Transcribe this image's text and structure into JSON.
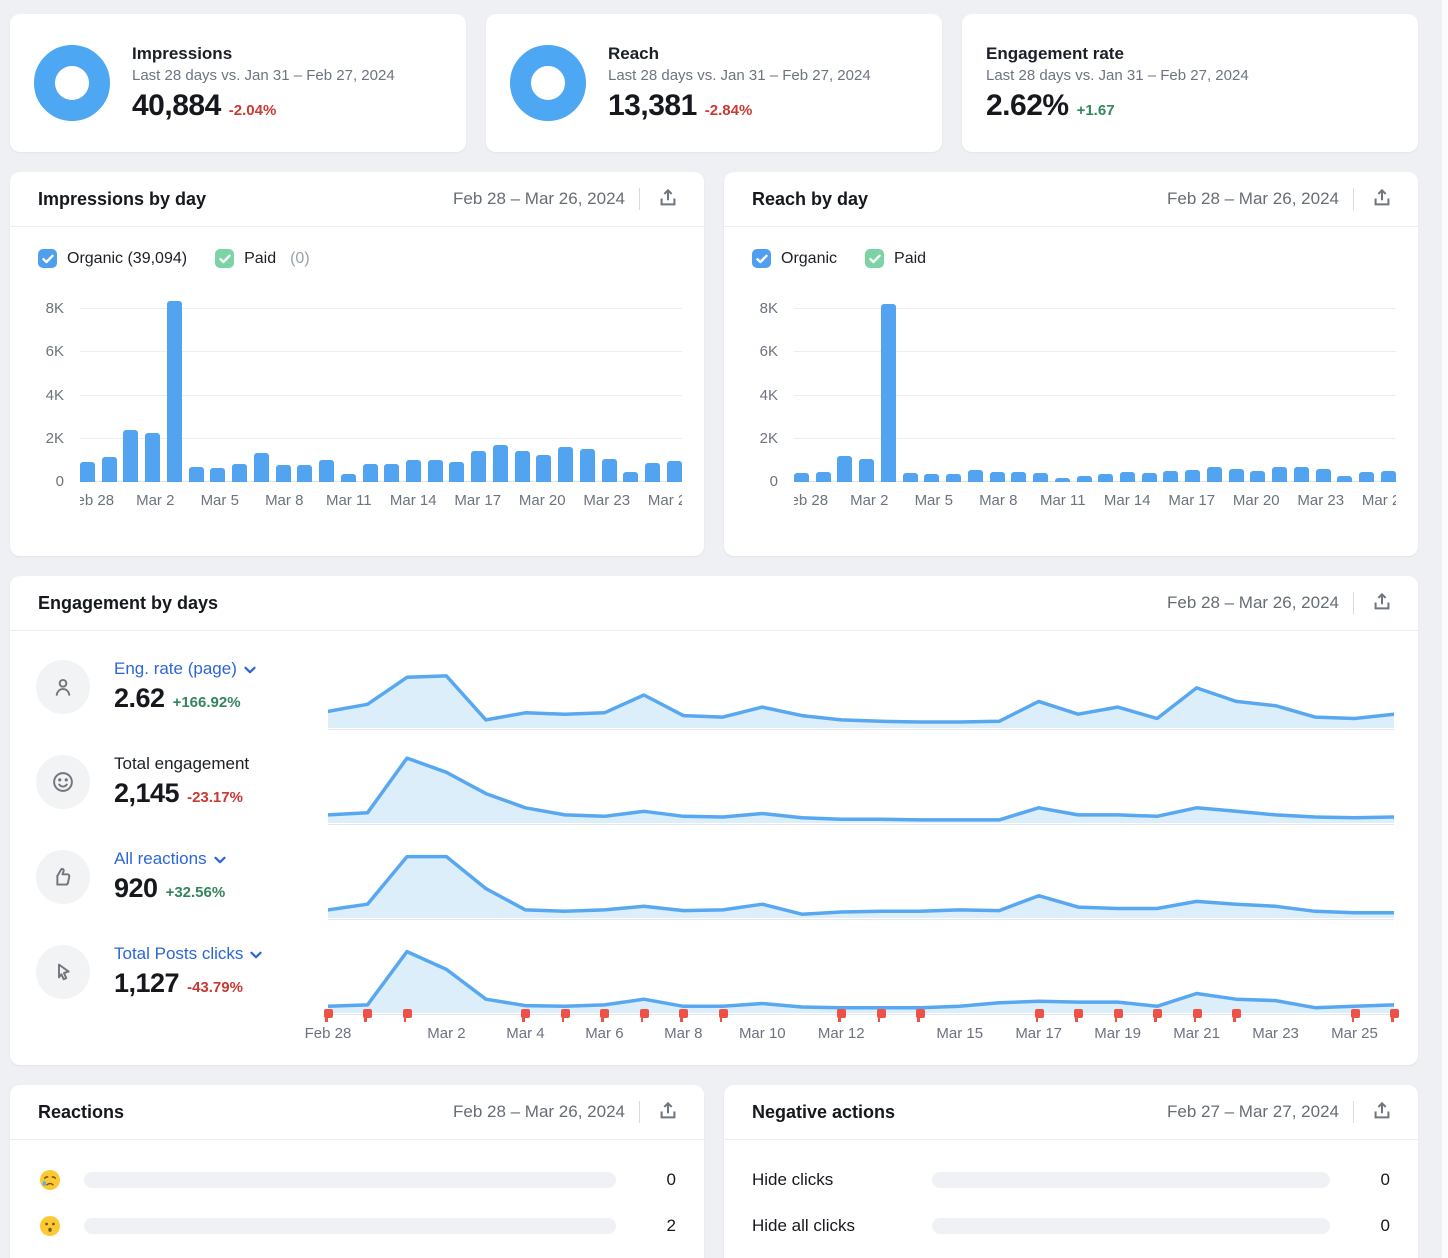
{
  "colors": {
    "background": "#eef0f3",
    "bar_blue": "#53a4f0",
    "spark_line_blue": "#58a8f1",
    "spark_fill_blue": "#ddeefb",
    "donut_blue": "#4da7f2",
    "link_blue": "#2b66d9",
    "checkbox_blue": "#4f9fee",
    "checkbox_green": "#7cd3a4",
    "delta_red": "#c93a32",
    "delta_green": "#35855c",
    "flag_red": "#ee5247"
  },
  "kpi_cards": [
    {
      "title": "Impressions",
      "subtitle": "Last 28 days vs. Jan 31 – Feb 27, 2024",
      "value": "40,884",
      "delta": "-2.04%",
      "delta_direction": "down",
      "icon": "donut-icon"
    },
    {
      "title": "Reach",
      "subtitle": "Last 28 days vs. Jan 31 – Feb 27, 2024",
      "value": "13,381",
      "delta": "-2.84%",
      "delta_direction": "down",
      "icon": "donut-icon"
    },
    {
      "title": "Engagement rate",
      "subtitle": "Last 28 days vs. Jan 31 – Feb 27, 2024",
      "value": "2.62%",
      "delta": "+1.67",
      "delta_direction": "up",
      "icon": null
    }
  ],
  "impressions_panel": {
    "title": "Impressions by day",
    "date_range": "Feb 28 – Mar 26, 2024",
    "export_icon": "export-icon",
    "legend": [
      {
        "label": "Organic (39,094)",
        "count": "",
        "checked": true,
        "color": "#4f9fee"
      },
      {
        "label": "Paid",
        "count": "(0)",
        "checked": true,
        "color": "#7cd3a4"
      }
    ]
  },
  "reach_panel": {
    "title": "Reach by day",
    "date_range": "Feb 28 – Mar 26, 2024",
    "export_icon": "export-icon",
    "legend": [
      {
        "label": "Organic",
        "count": "",
        "checked": true,
        "color": "#4f9fee"
      },
      {
        "label": "Paid",
        "count": "",
        "checked": true,
        "color": "#7cd3a4"
      }
    ]
  },
  "engagement_panel": {
    "title": "Engagement by days",
    "date_range": "Feb 28 – Mar 26, 2024",
    "export_icon": "export-icon",
    "rows": [
      {
        "icon": "person-icon",
        "label": "Eng. rate (page)",
        "is_dropdown": true,
        "value": "2.62",
        "delta": "+166.92%",
        "delta_direction": "up"
      },
      {
        "icon": "smiley-icon",
        "label": "Total engagement",
        "is_dropdown": false,
        "value": "2,145",
        "delta": "-23.17%",
        "delta_direction": "down"
      },
      {
        "icon": "thumb-up-icon",
        "label": "All reactions",
        "is_dropdown": true,
        "value": "920",
        "delta": "+32.56%",
        "delta_direction": "up"
      },
      {
        "icon": "cursor-icon",
        "label": "Total Posts clicks",
        "is_dropdown": true,
        "value": "1,127",
        "delta": "-43.79%",
        "delta_direction": "down"
      }
    ],
    "x_axis": {
      "labels": [
        "Feb 28",
        "Mar 2",
        "Mar 4",
        "Mar 6",
        "Mar 8",
        "Mar 10",
        "Mar 12",
        "Mar 15",
        "Mar 17",
        "Mar 19",
        "Mar 21",
        "Mar 23",
        "Mar 25"
      ],
      "days": [
        0,
        3,
        5,
        7,
        9,
        11,
        13,
        16,
        18,
        20,
        22,
        24,
        26
      ]
    }
  },
  "reactions_panel": {
    "title": "Reactions",
    "date_range": "Feb 28 – Mar 26, 2024",
    "export_icon": "export-icon",
    "rows": [
      {
        "icon": "crying-face-emoji",
        "value": "0",
        "bar_fill_pct": 0
      },
      {
        "icon": "hushed-face-emoji",
        "value": "2",
        "bar_fill_pct": 0
      }
    ]
  },
  "negative_actions_panel": {
    "title": "Negative actions",
    "date_range": "Feb 27 – Mar 27, 2024",
    "export_icon": "export-icon",
    "rows": [
      {
        "label": "Hide clicks",
        "value": "0",
        "bar_fill_pct": 0
      },
      {
        "label": "Hide all clicks",
        "value": "0",
        "bar_fill_pct": 0
      }
    ]
  },
  "chart_data": [
    {
      "id": "impressions_by_day",
      "type": "bar",
      "title": "Impressions by day",
      "categories": [
        "Feb 28",
        "Feb 29",
        "Mar 1",
        "Mar 2",
        "Mar 3",
        "Mar 4",
        "Mar 5",
        "Mar 6",
        "Mar 7",
        "Mar 8",
        "Mar 9",
        "Mar 10",
        "Mar 11",
        "Mar 12",
        "Mar 13",
        "Mar 14",
        "Mar 15",
        "Mar 16",
        "Mar 17",
        "Mar 18",
        "Mar 19",
        "Mar 20",
        "Mar 21",
        "Mar 22",
        "Mar 23",
        "Mar 24",
        "Mar 25",
        "Mar 26"
      ],
      "values": [
        950,
        1150,
        2400,
        2250,
        8400,
        700,
        650,
        850,
        1350,
        800,
        780,
        1000,
        350,
        850,
        820,
        1000,
        1000,
        950,
        1450,
        1700,
        1450,
        1270,
        1600,
        1530,
        1050,
        480,
        900,
        980
      ],
      "series_name": "Organic",
      "ylim": [
        0,
        8800
      ],
      "yticks": [
        "0",
        "2K",
        "4K",
        "6K",
        "8K"
      ],
      "ytick_values": [
        0,
        2000,
        4000,
        6000,
        8000
      ],
      "x_labels": [
        "Feb 28",
        "Mar 2",
        "Mar 5",
        "Mar 8",
        "Mar 11",
        "Mar 14",
        "Mar 17",
        "Mar 20",
        "Mar 23",
        "Mar 26"
      ],
      "label_days": [
        0,
        3,
        6,
        9,
        12,
        15,
        18,
        21,
        24,
        27
      ],
      "grid": true,
      "legend_position": "top"
    },
    {
      "id": "reach_by_day",
      "type": "bar",
      "title": "Reach by day",
      "categories": [
        "Feb 28",
        "Feb 29",
        "Mar 1",
        "Mar 2",
        "Mar 3",
        "Mar 4",
        "Mar 5",
        "Mar 6",
        "Mar 7",
        "Mar 8",
        "Mar 9",
        "Mar 10",
        "Mar 11",
        "Mar 12",
        "Mar 13",
        "Mar 14",
        "Mar 15",
        "Mar 16",
        "Mar 17",
        "Mar 18",
        "Mar 19",
        "Mar 20",
        "Mar 21",
        "Mar 22",
        "Mar 23",
        "Mar 24",
        "Mar 25",
        "Mar 26"
      ],
      "values": [
        420,
        480,
        1200,
        1050,
        8250,
        400,
        380,
        380,
        550,
        480,
        460,
        420,
        180,
        300,
        350,
        450,
        400,
        500,
        550,
        680,
        580,
        520,
        680,
        690,
        600,
        300,
        450,
        500
      ],
      "series_name": "Organic",
      "ylim": [
        0,
        8800
      ],
      "yticks": [
        "0",
        "2K",
        "4K",
        "6K",
        "8K"
      ],
      "ytick_values": [
        0,
        2000,
        4000,
        6000,
        8000
      ],
      "x_labels": [
        "Feb 28",
        "Mar 2",
        "Mar 5",
        "Mar 8",
        "Mar 11",
        "Mar 14",
        "Mar 17",
        "Mar 20",
        "Mar 23",
        "Mar 26"
      ],
      "label_days": [
        0,
        3,
        6,
        9,
        12,
        15,
        18,
        21,
        24,
        27
      ],
      "grid": true,
      "legend_position": "top"
    },
    {
      "id": "eng_rate_spark",
      "type": "area",
      "title": "Eng. rate (page) by day",
      "x_range": [
        "Feb 28",
        "Mar 26"
      ],
      "values_relative": [
        0.22,
        0.32,
        0.7,
        0.72,
        0.1,
        0.2,
        0.18,
        0.2,
        0.45,
        0.16,
        0.14,
        0.28,
        0.16,
        0.1,
        0.08,
        0.07,
        0.07,
        0.08,
        0.36,
        0.18,
        0.28,
        0.12,
        0.55,
        0.36,
        0.3,
        0.14,
        0.12,
        0.18
      ]
    },
    {
      "id": "total_engagement_spark",
      "type": "area",
      "title": "Total engagement by day",
      "x_range": [
        "Feb 28",
        "Mar 26"
      ],
      "values_relative": [
        0.1,
        0.13,
        0.9,
        0.7,
        0.4,
        0.2,
        0.1,
        0.08,
        0.15,
        0.08,
        0.07,
        0.12,
        0.06,
        0.04,
        0.04,
        0.03,
        0.03,
        0.03,
        0.2,
        0.1,
        0.1,
        0.08,
        0.2,
        0.15,
        0.1,
        0.07,
        0.06,
        0.07
      ]
    },
    {
      "id": "all_reactions_spark",
      "type": "area",
      "title": "All reactions by day",
      "x_range": [
        "Feb 28",
        "Mar 26"
      ],
      "values_relative": [
        0.1,
        0.18,
        0.85,
        0.85,
        0.4,
        0.1,
        0.08,
        0.1,
        0.15,
        0.09,
        0.1,
        0.18,
        0.04,
        0.07,
        0.08,
        0.08,
        0.1,
        0.09,
        0.3,
        0.14,
        0.12,
        0.12,
        0.22,
        0.18,
        0.15,
        0.08,
        0.06,
        0.06
      ]
    },
    {
      "id": "posts_clicks_spark",
      "type": "area",
      "title": "Total Posts clicks by day",
      "x_range": [
        "Feb 28",
        "Mar 26"
      ],
      "values_relative": [
        0.08,
        0.1,
        0.85,
        0.6,
        0.18,
        0.09,
        0.08,
        0.1,
        0.18,
        0.08,
        0.08,
        0.12,
        0.07,
        0.06,
        0.06,
        0.06,
        0.08,
        0.13,
        0.15,
        0.14,
        0.14,
        0.08,
        0.26,
        0.18,
        0.16,
        0.06,
        0.08,
        0.1
      ],
      "flag_days": [
        0,
        1,
        2,
        5,
        6,
        7,
        8,
        9,
        10,
        13,
        14,
        15,
        18,
        19,
        20,
        21,
        22,
        23,
        26,
        27
      ]
    }
  ]
}
